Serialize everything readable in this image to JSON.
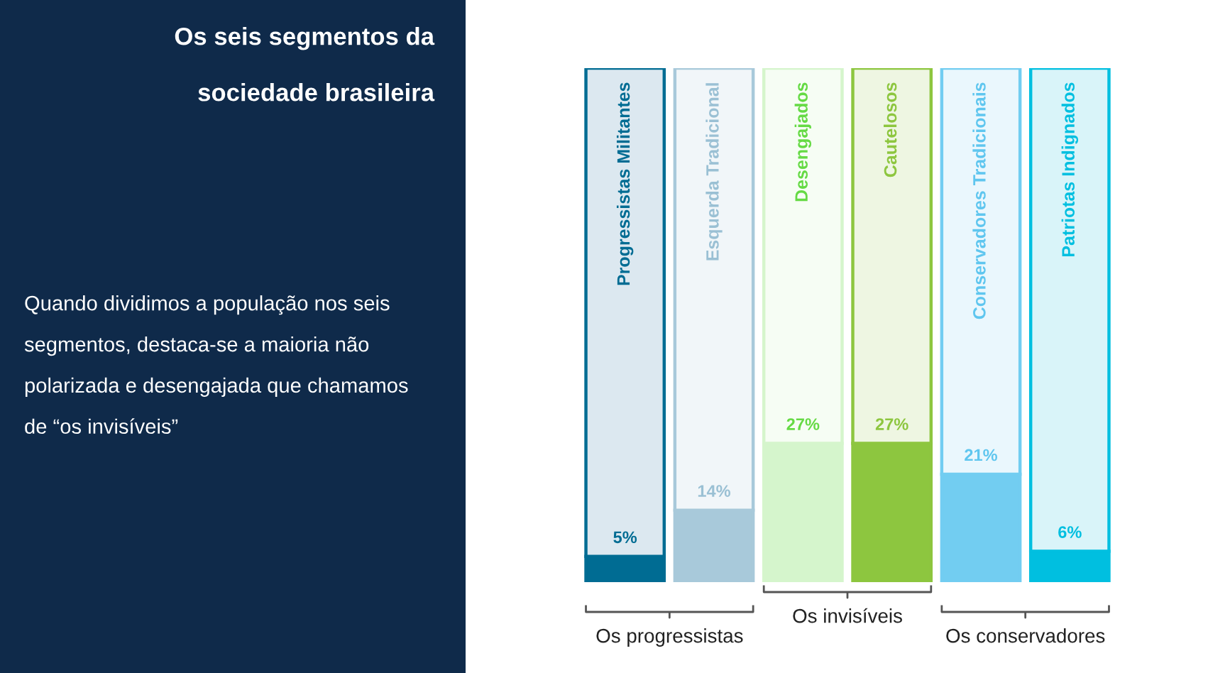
{
  "chart_data": {
    "type": "bar",
    "stacked": true,
    "title": "Os seis segmentos da sociedade brasileira",
    "subtitle": "Quando dividimos a população nos seis segmentos, destaca-se a maioria não polarizada e desengajada que chamamos de “os invisíveis”",
    "categories": [
      "Progressistas Militantes",
      "Esquerda Tradicional",
      "Desengajados",
      "Cautelosos",
      "Conservadores Tradicionais",
      "Patriotas Indignados"
    ],
    "series": [
      {
        "colors": [
          "#006c93",
          "#a8c9da",
          "#d5f5cc",
          "#8dc63f",
          "#72cdf1",
          "#00bfe0"
        ],
        "values": [
          5,
          14,
          27,
          27,
          21,
          6
        ],
        "value_labels": [
          "5%",
          "14%",
          "27%",
          "27%",
          "21%",
          "6%"
        ]
      },
      {
        "colors": [
          "#dce8f0",
          "#f1f6f9",
          "#f6fdf4",
          "#eef6e2",
          "#eaf7fd",
          "#d9f4f9"
        ],
        "values": [
          95,
          86,
          73,
          73,
          79,
          94
        ]
      }
    ],
    "annotations": [
      "Os progressistas",
      "Os invisíveis",
      "Os conservadores"
    ]
  }
}
